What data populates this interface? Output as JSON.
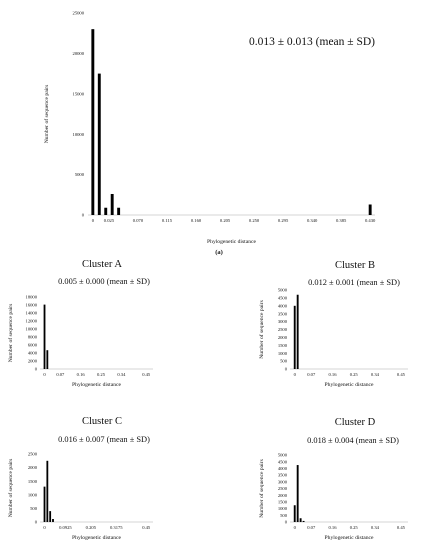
{
  "chart_data": [
    {
      "type": "bar",
      "panel": "(a)",
      "title": "",
      "annotation": "0.013 ± 0.013 (mean ± SD)",
      "xlabel": "Phylogenetic distance",
      "ylabel": "Number of sequence pairs",
      "ylim": [
        0,
        25000
      ],
      "yticks": [
        "0",
        "5000",
        "10000",
        "15000",
        "20000",
        "25000"
      ],
      "xticks": [
        "0",
        "0.025",
        "0.070",
        "0.115",
        "0.160",
        "0.205",
        "0.250",
        "0.295",
        "0.340",
        "0.385",
        "0.430"
      ],
      "xlim": [
        -0.0075,
        0.4375
      ],
      "bar_width": 0.0045,
      "x": [
        0.0,
        0.01,
        0.02,
        0.03,
        0.04,
        0.43
      ],
      "values": [
        23000,
        17500,
        900,
        2600,
        900,
        1300
      ]
    },
    {
      "type": "bar",
      "title": "Cluster A",
      "annotation": "0.005 ± 0.000 (mean ± SD)",
      "xlabel": "Phylogenetic distance",
      "ylabel": "Number of sequence pairs",
      "ylim": [
        0,
        18000
      ],
      "yticks": [
        "0",
        "2000",
        "4000",
        "6000",
        "8000",
        "10000",
        "12000",
        "14000",
        "16000",
        "18000"
      ],
      "xticks": [
        "0",
        "0.07",
        "0.16",
        "0.25",
        "0.34",
        "0.45"
      ],
      "xlim": [
        -0.02,
        0.48
      ],
      "bar_width": 0.008,
      "x": [
        0.0,
        0.0125
      ],
      "values": [
        16100,
        4700
      ]
    },
    {
      "type": "bar",
      "title": "Cluster B",
      "annotation": "0.012 ± 0.001 (mean ± SD)",
      "xlabel": "Phylogenetic distance",
      "ylabel": "Number of sequence pairs",
      "ylim": [
        0,
        5000
      ],
      "yticks": [
        "0",
        "500",
        "1000",
        "1500",
        "2000",
        "2500",
        "3000",
        "3500",
        "4000",
        "4500",
        "5000"
      ],
      "xticks": [
        "0",
        "0.07",
        "0.16",
        "0.25",
        "0.34",
        "0.45"
      ],
      "xlim": [
        -0.02,
        0.48
      ],
      "bar_width": 0.008,
      "x": [
        0.0,
        0.0125
      ],
      "values": [
        4000,
        4700
      ]
    },
    {
      "type": "bar",
      "title": "Cluster C",
      "annotation": "0.016 ± 0.007 (mean ± SD)",
      "xlabel": "Phylogenetic distance",
      "ylabel": "Number of sequence pairs",
      "ylim": [
        0,
        2500
      ],
      "yticks": [
        "0",
        "500",
        "1000",
        "1500",
        "2000",
        "2500"
      ],
      "xticks": [
        "0",
        "0.0925",
        "0.205",
        "0.3175",
        "0.45"
      ],
      "xlim": [
        -0.02,
        0.48
      ],
      "bar_width": 0.008,
      "x": [
        0.0,
        0.0125,
        0.025,
        0.0375
      ],
      "values": [
        1300,
        2250,
        400,
        110
      ]
    },
    {
      "type": "bar",
      "title": "Cluster D",
      "annotation": "0.018 ± 0.004 (mean ± SD)",
      "xlabel": "Phylogenetic distance",
      "ylabel": "Number of sequence pairs",
      "ylim": [
        0,
        5000
      ],
      "yticks": [
        "0",
        "500",
        "1000",
        "1500",
        "2000",
        "2500",
        "3000",
        "3500",
        "4000",
        "4500",
        "5000"
      ],
      "xticks": [
        "0",
        "0.07",
        "0.16",
        "0.25",
        "0.34",
        "0.45"
      ],
      "xlim": [
        -0.02,
        0.48
      ],
      "bar_width": 0.008,
      "x": [
        0.0,
        0.0125,
        0.025,
        0.0375
      ],
      "values": [
        1250,
        4250,
        280,
        80
      ]
    }
  ]
}
